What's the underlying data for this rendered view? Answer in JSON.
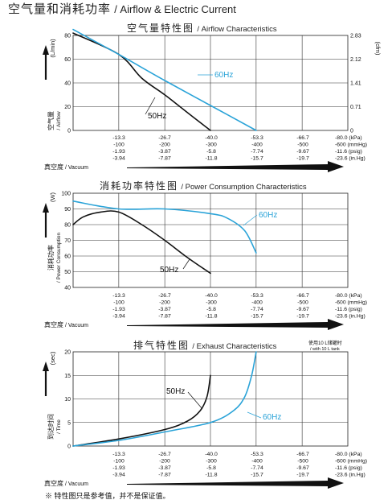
{
  "title": {
    "cn": "空气量和消耗功率",
    "en": "/ Airflow & Electric Current"
  },
  "footnote": "※ 特性图只是参考值，并不是保证值。",
  "vacuum_label": {
    "cn": "真空度",
    "en": "/ Vacuum"
  },
  "vacuum_axis": {
    "kpa": [
      "-13.3",
      "-26.7",
      "-40.0",
      "-53.3",
      "-66.7",
      "-80.0 (kPa)"
    ],
    "mmhg": [
      "-100",
      "-200",
      "-300",
      "-400",
      "-500",
      "-600 (mmHg)"
    ],
    "psig": [
      "-1.93",
      "-3.87",
      "-5.8",
      "-7.74",
      "-9.67",
      "-11.6 (psig)"
    ],
    "inhg": [
      "-3.94",
      "-7.87",
      "-11.8",
      "-15.7",
      "-19.7",
      "-23.6 (in.Hg)"
    ]
  },
  "colors": {
    "hz50": "#111111",
    "hz60": "#2aa3d8",
    "arrow": "#111111"
  },
  "chart_data": [
    {
      "type": "line",
      "title_cn": "空气量特性图",
      "title_en": "/ Airflow Characteristics",
      "ylabel_unit": "(L/min)",
      "ylabel_cn": "空气量",
      "ylabel_en": "/ Airflow",
      "y2label_unit": "(cfm)",
      "xlim": [
        0,
        80
      ],
      "ylim": [
        0,
        80
      ],
      "yticks": [
        0,
        20,
        40,
        60,
        80
      ],
      "y2ticks": [
        {
          "y": 80,
          "label": "2.83"
        },
        {
          "y": 60,
          "label": "2.12"
        },
        {
          "y": 40,
          "label": "1.41"
        },
        {
          "y": 20,
          "label": "0.71"
        },
        {
          "y": 0,
          "label": "0"
        }
      ],
      "grid": true,
      "series": [
        {
          "name": "50Hz",
          "color": "#111111",
          "x": [
            0,
            13.3,
            20,
            26.7,
            33.3,
            40
          ],
          "y": [
            82,
            64,
            44,
            30,
            15,
            0
          ]
        },
        {
          "name": "60Hz",
          "color": "#2aa3d8",
          "x": [
            0,
            13.3,
            26.7,
            40,
            53.3
          ],
          "y": [
            85,
            64,
            42,
            21,
            0
          ]
        }
      ]
    },
    {
      "type": "line",
      "title_cn": "消耗功率特性图",
      "title_en": "/ Power Consumption Characteristics",
      "ylabel_unit": "(W)",
      "ylabel_cn": "消耗功率",
      "ylabel_en": "/ Power Consumption",
      "xlim": [
        0,
        80
      ],
      "ylim": [
        40,
        100
      ],
      "yticks": [
        40,
        50,
        60,
        70,
        80,
        90,
        100
      ],
      "grid": true,
      "series": [
        {
          "name": "50Hz",
          "color": "#111111",
          "x": [
            0,
            3,
            8,
            13.3,
            20,
            26.7,
            33.3,
            40
          ],
          "y": [
            80,
            85,
            88,
            88,
            80,
            70,
            59,
            49
          ]
        },
        {
          "name": "60Hz",
          "color": "#2aa3d8",
          "x": [
            0,
            13.3,
            26.7,
            40,
            45,
            50,
            53.3
          ],
          "y": [
            95,
            90,
            90,
            87,
            84,
            76,
            62
          ]
        }
      ]
    },
    {
      "type": "line",
      "title_cn": "排气特性图",
      "title_en": "/ Exhaust Characteristics",
      "ylabel_unit": "(sec)",
      "ylabel_cn": "到达时间",
      "ylabel_en": "/ Time",
      "note_cn": "使用10 L储罐时",
      "note_en": "/ with 10 L tank",
      "xlim": [
        0,
        80
      ],
      "ylim": [
        0,
        20
      ],
      "yticks": [
        0,
        5,
        10,
        15,
        20
      ],
      "grid": true,
      "series": [
        {
          "name": "50Hz",
          "color": "#111111",
          "x": [
            0,
            13.3,
            26.7,
            33.3,
            37,
            39,
            40
          ],
          "y": [
            0,
            1.5,
            3.5,
            5.3,
            7.5,
            10.5,
            15
          ]
        },
        {
          "name": "60Hz",
          "color": "#2aa3d8",
          "x": [
            0,
            13.3,
            26.7,
            40,
            46.7,
            50,
            52,
            53.3
          ],
          "y": [
            0,
            1.2,
            3.0,
            5.0,
            7.5,
            10.5,
            15,
            20
          ]
        }
      ]
    }
  ]
}
